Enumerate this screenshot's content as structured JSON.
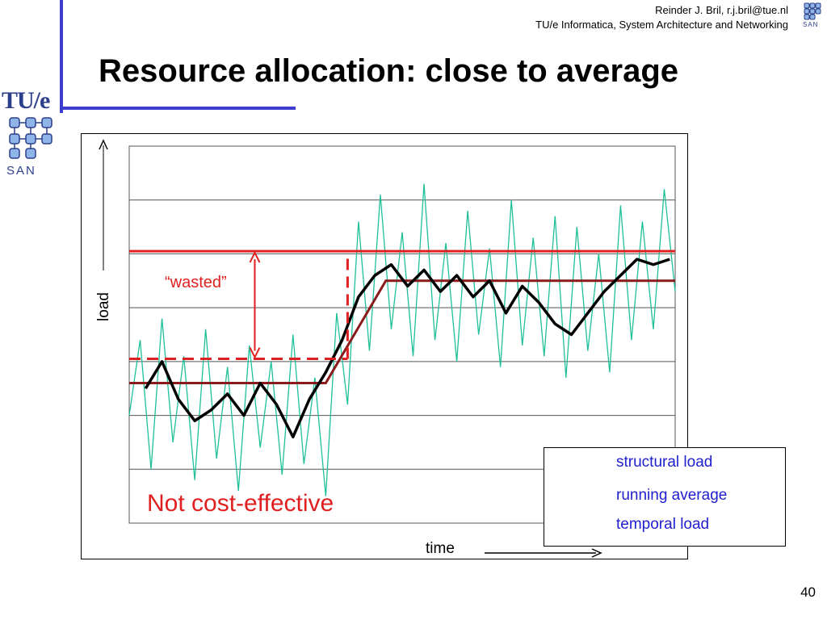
{
  "header": {
    "line1": "Reinder J. Bril, r.j.bril@tue.nl",
    "line2": "TU/e Informatica, System Architecture and Networking"
  },
  "logos": {
    "tue": "TU/e",
    "san_left": "SAN",
    "san_right": "SAN"
  },
  "slide": {
    "title": "Resource allocation: close to average",
    "page_number": "40"
  },
  "annotations": {
    "wasted": "“wasted”",
    "not_cost_effective": "Not cost-effective"
  },
  "colors": {
    "accent_blue": "#3d3dd0",
    "red": "#e02020",
    "structural": "#8b1a1a",
    "temporal": "#1fbf9a",
    "running": "#000000",
    "legend_text": "#2020d0"
  },
  "chart_data": {
    "type": "line",
    "xlabel": "time",
    "ylabel": "load",
    "grid": true,
    "legend_position": "bottom-right",
    "legend": [
      {
        "key": "structural",
        "label": "structural load"
      },
      {
        "key": "running",
        "label": "running average"
      },
      {
        "key": "temporal",
        "label": "temporal load"
      }
    ],
    "structural_load": {
      "low_level": 2.6,
      "high_level": 4.5,
      "transition_start": 0.36,
      "transition_end": 0.47
    },
    "allocation": {
      "initial_level": 3.05,
      "raised_level": 5.05,
      "raise_at": 0.4
    },
    "running_average": {
      "x": [
        0.03,
        0.06,
        0.09,
        0.12,
        0.15,
        0.18,
        0.21,
        0.24,
        0.27,
        0.3,
        0.33,
        0.36,
        0.39,
        0.42,
        0.45,
        0.48,
        0.51,
        0.54,
        0.57,
        0.6,
        0.63,
        0.66,
        0.69,
        0.72,
        0.75,
        0.78,
        0.81,
        0.84,
        0.87,
        0.9,
        0.93,
        0.96,
        0.99
      ],
      "y": [
        2.5,
        3.0,
        2.3,
        1.9,
        2.1,
        2.4,
        2.0,
        2.6,
        2.2,
        1.6,
        2.3,
        2.8,
        3.4,
        4.2,
        4.6,
        4.8,
        4.4,
        4.7,
        4.3,
        4.6,
        4.2,
        4.5,
        3.9,
        4.4,
        4.1,
        3.7,
        3.5,
        3.9,
        4.3,
        4.6,
        4.9,
        4.8,
        4.9
      ]
    },
    "temporal_load": {
      "x": [
        0.0,
        0.02,
        0.04,
        0.06,
        0.08,
        0.1,
        0.12,
        0.14,
        0.16,
        0.18,
        0.2,
        0.22,
        0.24,
        0.26,
        0.28,
        0.3,
        0.32,
        0.34,
        0.36,
        0.38,
        0.4,
        0.42,
        0.44,
        0.46,
        0.48,
        0.5,
        0.52,
        0.54,
        0.56,
        0.58,
        0.6,
        0.62,
        0.64,
        0.66,
        0.68,
        0.7,
        0.72,
        0.74,
        0.76,
        0.78,
        0.8,
        0.82,
        0.84,
        0.86,
        0.88,
        0.9,
        0.92,
        0.94,
        0.96,
        0.98,
        1.0
      ],
      "y": [
        2.0,
        3.4,
        1.0,
        3.8,
        1.5,
        3.1,
        0.8,
        3.6,
        1.2,
        2.9,
        0.6,
        3.3,
        1.4,
        3.0,
        0.9,
        3.5,
        1.1,
        2.7,
        0.5,
        3.9,
        2.2,
        5.6,
        3.2,
        6.1,
        3.6,
        5.4,
        3.1,
        6.3,
        3.4,
        5.2,
        3.0,
        5.8,
        3.5,
        5.1,
        2.9,
        6.0,
        3.3,
        5.3,
        3.1,
        5.7,
        2.7,
        5.5,
        3.2,
        5.0,
        2.8,
        5.9,
        3.4,
        5.6,
        3.6,
        6.2,
        4.3
      ]
    },
    "xlim": [
      0,
      1
    ],
    "ylim": [
      0,
      7
    ],
    "gridlines": [
      1,
      2,
      3,
      4,
      5,
      6,
      7
    ]
  }
}
